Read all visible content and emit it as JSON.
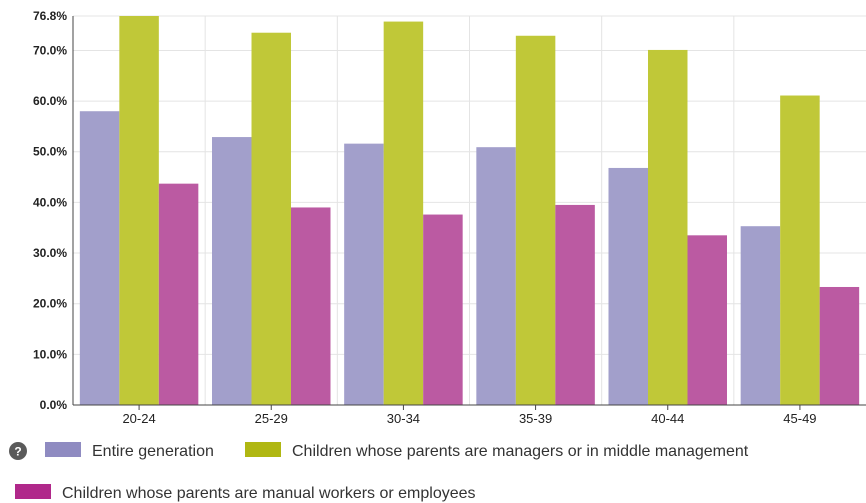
{
  "chart_data": {
    "type": "bar",
    "categories": [
      "20-24",
      "25-29",
      "30-34",
      "35-39",
      "40-44",
      "45-49"
    ],
    "series": [
      {
        "name": "Entire generation",
        "color": "#a29fcb",
        "values": [
          58.0,
          52.9,
          51.6,
          50.9,
          46.8,
          35.3
        ]
      },
      {
        "name": "Children whose parents are managers or in middle management",
        "color": "#c0c838",
        "values": [
          76.8,
          73.5,
          75.7,
          72.9,
          70.1,
          61.1
        ]
      },
      {
        "name": "Children whose parents are manual workers or employees",
        "color": "#bb5aa2",
        "values": [
          43.7,
          39.0,
          37.6,
          39.5,
          33.5,
          23.3
        ]
      }
    ],
    "yticks": [
      "0.0%",
      "10.0%",
      "20.0%",
      "30.0%",
      "40.0%",
      "50.0%",
      "60.0%",
      "70.0%",
      "76.8%"
    ],
    "ytick_values": [
      0,
      10,
      20,
      30,
      40,
      50,
      60,
      70,
      76.8
    ],
    "ylim": [
      0,
      76.8
    ],
    "grid": true,
    "legend_position": "bottom"
  },
  "legend_colors": [
    "#8f8bc1",
    "#b0b712",
    "#b0288a"
  ],
  "help": {
    "glyph": "?",
    "icon": "help-circle-icon"
  }
}
